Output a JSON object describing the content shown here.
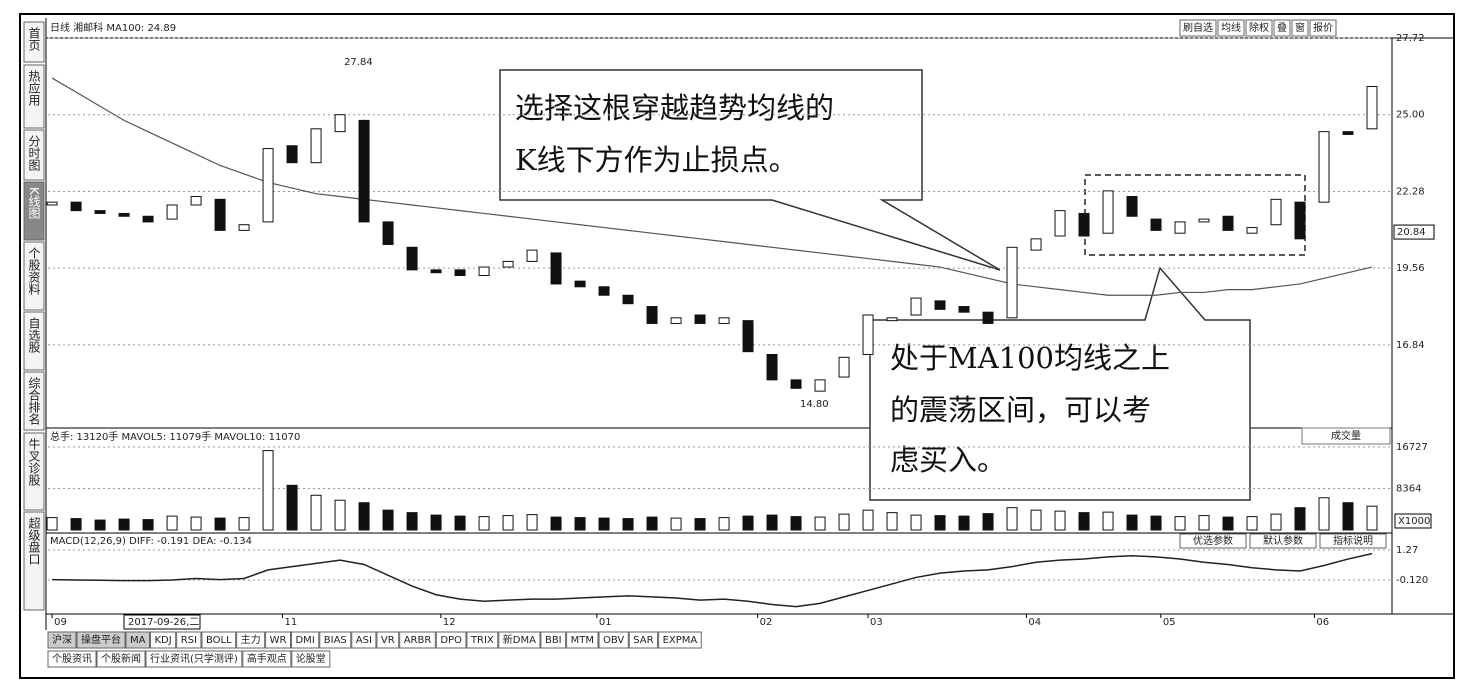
{
  "toolbar": {
    "title": "日线 湘邮科 MA100: 24.89",
    "buttons": [
      "刷自选",
      "均线",
      "除权",
      "叠",
      "窗",
      "报价"
    ]
  },
  "sidebar": {
    "tabs": [
      "首页",
      "热应用",
      "分时图",
      "K线图",
      "个股资料",
      "自选股",
      "综合排名",
      "牛叉诊股",
      "超级盘口"
    ]
  },
  "chart_data": [
    {
      "type": "candlestick",
      "open": [
        21.8,
        21.9,
        21.6,
        21.5,
        21.4,
        21.3,
        21.8,
        22.0,
        20.9,
        21.2,
        23.9,
        23.3,
        24.4,
        24.8,
        21.2,
        20.3,
        19.5,
        19.5,
        19.3,
        19.6,
        19.8,
        20.1,
        19.1,
        18.9,
        18.6,
        18.2,
        17.6,
        17.9,
        17.6,
        17.7,
        16.5,
        15.6,
        15.2,
        15.7,
        16.5,
        17.7,
        17.9,
        18.4,
        18.2,
        18.0,
        17.8,
        20.2,
        20.7,
        21.5,
        20.8,
        22.1,
        21.3,
        20.8,
        21.2,
        21.4,
        20.8,
        21.1,
        21.9,
        21.9,
        24.4,
        24.5
      ],
      "close": [
        21.9,
        21.6,
        21.5,
        21.4,
        21.2,
        21.8,
        22.1,
        20.9,
        21.1,
        23.8,
        23.3,
        24.5,
        25.0,
        21.2,
        20.4,
        19.5,
        19.4,
        19.3,
        19.6,
        19.8,
        20.2,
        19.0,
        18.9,
        18.6,
        18.3,
        17.6,
        17.8,
        17.6,
        17.8,
        16.6,
        15.6,
        15.3,
        15.6,
        16.4,
        17.9,
        17.8,
        18.5,
        18.1,
        18.0,
        17.6,
        20.3,
        20.6,
        21.6,
        20.7,
        22.3,
        21.4,
        20.9,
        21.2,
        21.3,
        20.9,
        21.0,
        22.0,
        20.6,
        24.4,
        24.3,
        26.0
      ],
      "ma100": [
        26.3,
        25.8,
        25.3,
        24.8,
        24.4,
        24.0,
        23.6,
        23.2,
        22.9,
        22.6,
        22.4,
        22.2,
        22.1,
        22.0,
        21.9,
        21.8,
        21.7,
        21.6,
        21.5,
        21.4,
        21.3,
        21.2,
        21.1,
        21.0,
        20.9,
        20.8,
        20.7,
        20.6,
        20.5,
        20.4,
        20.3,
        20.2,
        20.1,
        20.0,
        19.9,
        19.8,
        19.7,
        19.6,
        19.4,
        19.2,
        19.0,
        18.9,
        18.8,
        18.7,
        18.6,
        18.6,
        18.6,
        18.7,
        18.7,
        18.8,
        18.8,
        18.9,
        19.0,
        19.2,
        19.4,
        19.6
      ],
      "ma_color": "#555555",
      "up_color": "#ffffff",
      "down_color": "#111111",
      "ylim": [
        14,
        27.72
      ],
      "yticks": [
        27.72,
        {
          "value": 25,
          "label": "25.00"
        },
        22.28,
        19.56,
        16.84
      ],
      "grid": true,
      "xlim": [
        -0.17,
        55.75
      ],
      "xticks": [
        {
          "value": 0,
          "label": "09"
        },
        {
          "value": 9.6,
          "label": "11"
        },
        {
          "value": 16.2,
          "label": "12"
        },
        {
          "value": 22.7,
          "label": "01"
        },
        {
          "value": 29.4,
          "label": "02"
        },
        {
          "value": 34,
          "label": "03"
        },
        {
          "value": 40.6,
          "label": "04"
        },
        {
          "value": 46.2,
          "label": "05"
        },
        {
          "value": 52.6,
          "label": "06"
        }
      ],
      "last_price": 20.84,
      "high_label": "27.84",
      "low_label": "14.80"
    },
    {
      "type": "bar",
      "title": "总手: 13120手 MAVOL5: 11079手 MAVOL10: 11070",
      "values": [
        2500,
        2300,
        2000,
        2200,
        2100,
        2800,
        2600,
        2400,
        2500,
        16000,
        9000,
        7000,
        6000,
        5500,
        4000,
        3500,
        3000,
        2800,
        2700,
        2900,
        3100,
        2600,
        2500,
        2400,
        2300,
        2600,
        2400,
        2300,
        2500,
        2800,
        3000,
        2700,
        2600,
        3200,
        4000,
        3500,
        3000,
        2900,
        2800,
        3300,
        4500,
        4000,
        3800,
        3500,
        3600,
        3000,
        2800,
        2700,
        2900,
        2600,
        2700,
        3200,
        4500,
        6500,
        5500,
        4800
      ],
      "ylim": [
        0,
        16727
      ],
      "yticks": [
        16727,
        8364
      ],
      "grid": true,
      "unit": "X1000",
      "selector": "成交量"
    },
    {
      "type": "line",
      "title": "MACD(12,26,9)  DIFF: -0.191  DEA: -0.134",
      "values": [
        -0.1,
        -0.12,
        -0.13,
        -0.15,
        -0.15,
        -0.12,
        -0.05,
        -0.1,
        -0.05,
        0.35,
        0.5,
        0.65,
        0.8,
        0.6,
        0.1,
        -0.4,
        -0.8,
        -1.0,
        -1.1,
        -1.05,
        -1.0,
        -1.0,
        -0.95,
        -0.9,
        -0.85,
        -0.9,
        -0.95,
        -1.05,
        -1.0,
        -1.1,
        -1.25,
        -1.35,
        -1.2,
        -0.9,
        -0.6,
        -0.3,
        0.0,
        0.2,
        0.3,
        0.35,
        0.5,
        0.7,
        0.8,
        0.85,
        0.95,
        1.0,
        0.95,
        0.85,
        0.7,
        0.6,
        0.45,
        0.35,
        0.3,
        0.55,
        0.85,
        1.1
      ],
      "color": "#222222",
      "ylim": [
        -1.69,
        1.73
      ],
      "yticks": [
        1.27,
        {
          "value": -0.12,
          "label": "-0.120"
        }
      ],
      "grid": true,
      "buttons": [
        "优选参数",
        "默认参数",
        "指标说明"
      ]
    }
  ],
  "cursor_date": "2017-09-26,二",
  "annotations": [
    {
      "lines": [
        "选择这根穿越趋势均线的",
        "K线下方作为止损点。"
      ]
    },
    {
      "lines": [
        "处于MA100均线之上",
        "的震荡区间，可以考",
        "虑买入。"
      ]
    }
  ],
  "bottom_tabs": {
    "row1": [
      "沪深",
      "操盘平台",
      "MA",
      "KDJ",
      "RSI",
      "BOLL",
      "主力",
      "WR",
      "DMI",
      "BIAS",
      "ASI",
      "VR",
      "ARBR",
      "DPO",
      "TRIX",
      "新DMA",
      "BBI",
      "MTM",
      "OBV",
      "SAR",
      "EXPMA"
    ],
    "row2": [
      "个股资讯",
      "个股新闻",
      "行业资讯(只学测评)",
      "高手观点",
      "论股堂"
    ]
  }
}
